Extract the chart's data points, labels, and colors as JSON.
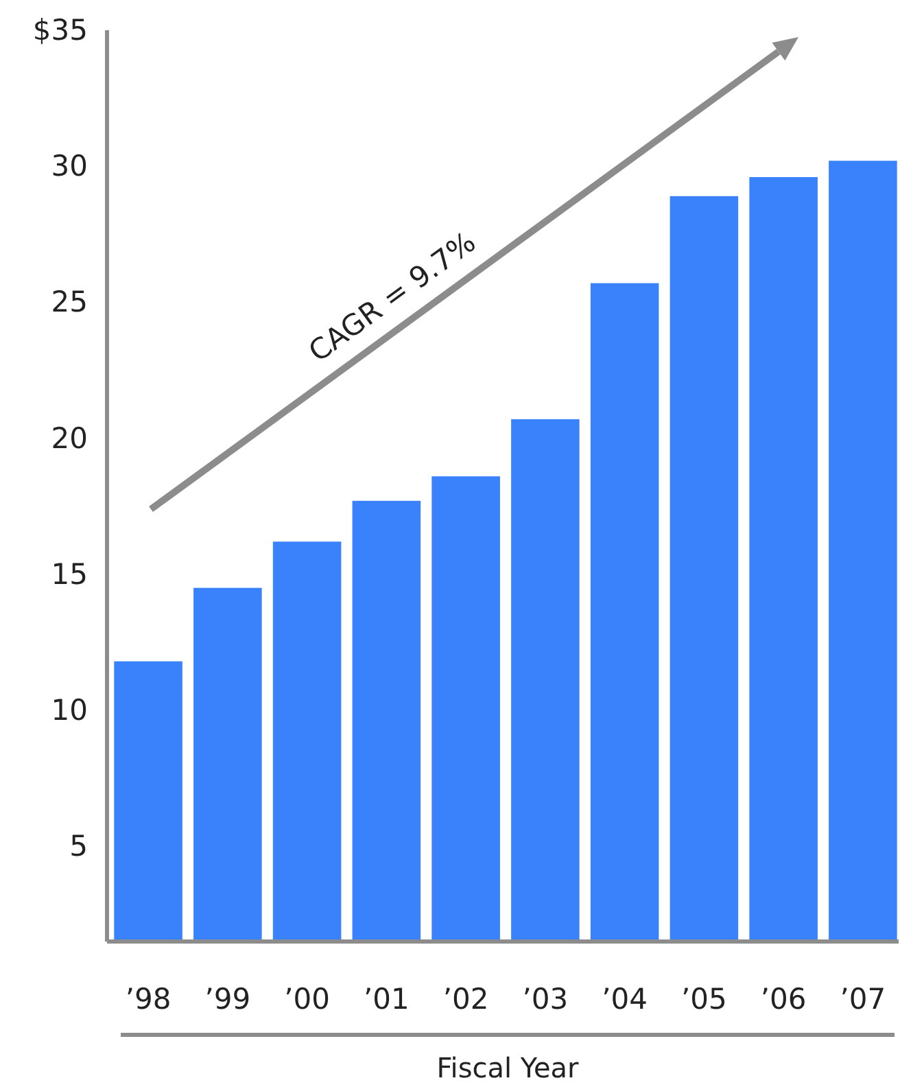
{
  "chart_data": {
    "type": "bar",
    "xlabel": "Fiscal Year",
    "categories": [
      "’98",
      "’99",
      "’00",
      "’01",
      "’02",
      "’03",
      "’04",
      "’05",
      "’06",
      "’07"
    ],
    "values": [
      11.8,
      14.5,
      16.2,
      17.7,
      18.6,
      20.7,
      25.7,
      28.9,
      29.6,
      30.2
    ],
    "color": "#3a82fb",
    "ylim": [
      1.5,
      35
    ],
    "yticks": [
      5,
      10,
      15,
      20,
      25,
      30,
      {
        "value": 35,
        "label": "$35"
      }
    ],
    "grid": false,
    "annotations": [
      "CAGR = 9.7%"
    ]
  }
}
